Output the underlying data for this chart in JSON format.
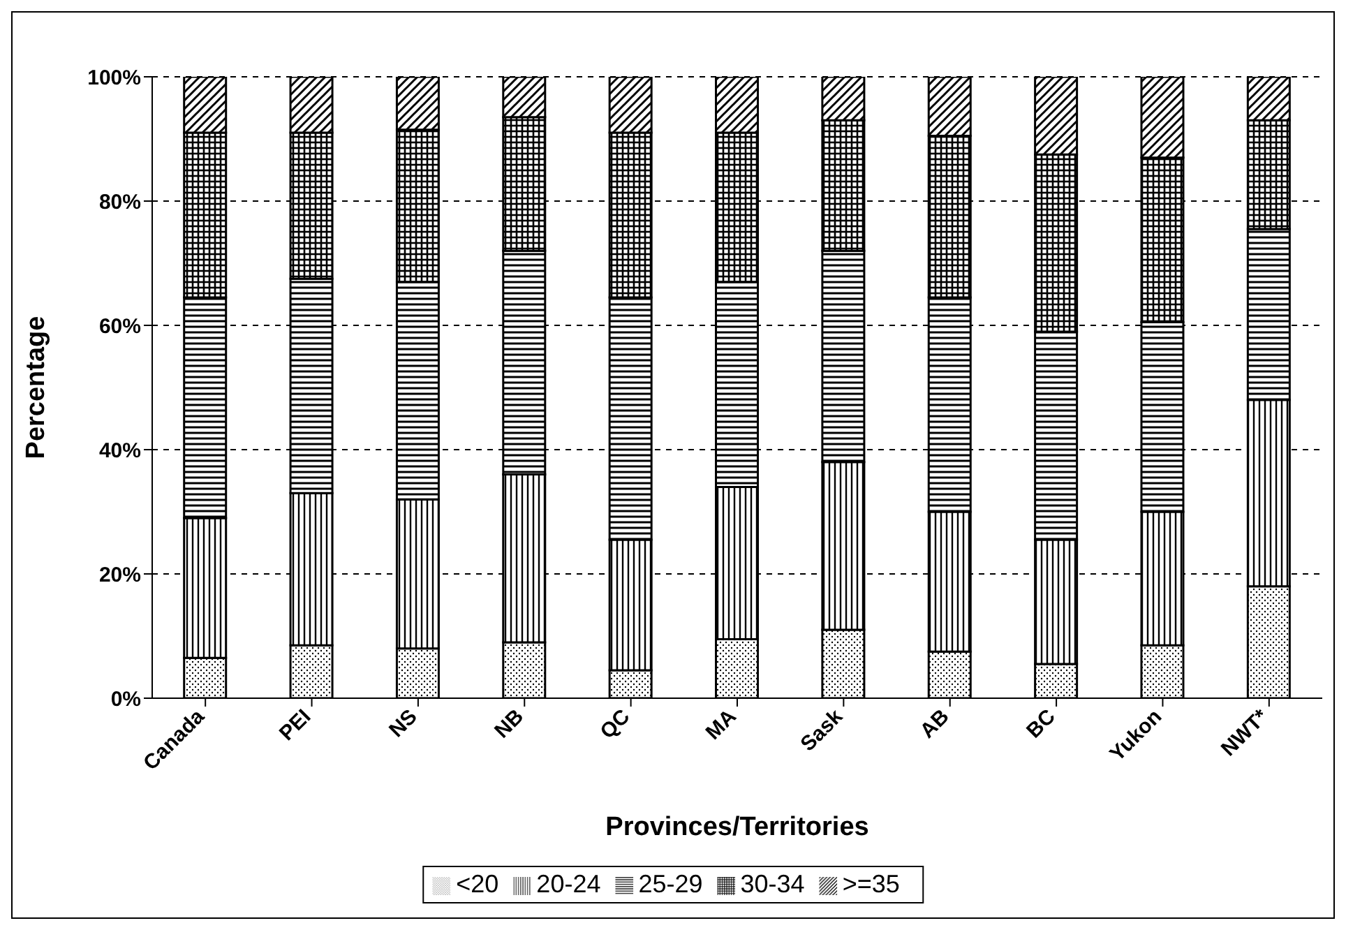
{
  "chart_data": {
    "type": "bar",
    "stacked": true,
    "xlabel": "Provinces/Territories",
    "ylabel": "Percentage",
    "categories": [
      "Canada",
      "PEI",
      "NS",
      "NB",
      "QC",
      "MA",
      "Sask",
      "AB",
      "BC",
      "Yukon",
      "NWT*"
    ],
    "series": [
      {
        "name": "<20",
        "color": "#000000",
        "values": [
          6.5,
          8.5,
          8,
          9,
          4.5,
          9.5,
          11,
          7.5,
          5.5,
          8.5,
          18
        ]
      },
      {
        "name": "20-24",
        "color": "#000000",
        "values": [
          22.5,
          24.5,
          24,
          27,
          21,
          24.5,
          27,
          22.5,
          20,
          21.5,
          30
        ]
      },
      {
        "name": "25-29",
        "color": "#000000",
        "values": [
          35.5,
          34.5,
          35,
          36,
          39,
          33,
          34,
          34.5,
          33.5,
          30.5,
          27.5
        ]
      },
      {
        "name": "30-34",
        "color": "#000000",
        "values": [
          26.5,
          23.5,
          24.5,
          21.5,
          26.5,
          24,
          21,
          26,
          28.5,
          26.5,
          17.5
        ]
      },
      {
        "name": ">=35",
        "color": "#000000",
        "values": [
          9,
          9,
          8.5,
          6.5,
          9,
          9,
          7,
          9.5,
          12.5,
          13,
          7
        ]
      }
    ],
    "ylim": [
      0,
      100
    ],
    "yticks": [
      {
        "value": 0,
        "label": "0%"
      },
      {
        "value": 20,
        "label": "20%"
      },
      {
        "value": 40,
        "label": "40%"
      },
      {
        "value": 60,
        "label": "60%"
      },
      {
        "value": 80,
        "label": "80%"
      },
      {
        "value": 100,
        "label": "100%"
      }
    ],
    "grid": "y",
    "legend": "bottom"
  }
}
